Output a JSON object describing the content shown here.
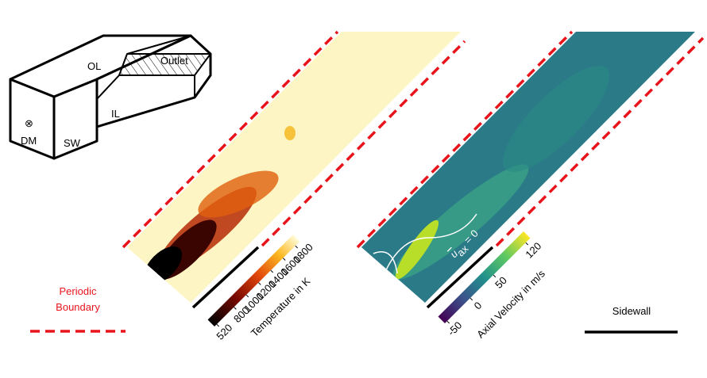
{
  "schematic": {
    "labels": {
      "ol": "OL",
      "outlet": "Outlet",
      "il": "IL",
      "dm": "DM",
      "sw": "SW",
      "symbol": "⊗"
    }
  },
  "legend": {
    "periodic": [
      "Periodic",
      "Boundary"
    ],
    "sidewall": "Sidewall"
  },
  "temperature": {
    "title": "Temperature in K",
    "ticks": [
      520,
      800,
      1000,
      1200,
      1400,
      1600,
      1800
    ]
  },
  "velocity": {
    "title": "Axial Velocity in m/s",
    "ticks": [
      -50,
      0,
      50,
      120
    ]
  },
  "annotation": {
    "symbol": "u",
    "subscript": "ax",
    "text": "= 0"
  }
}
